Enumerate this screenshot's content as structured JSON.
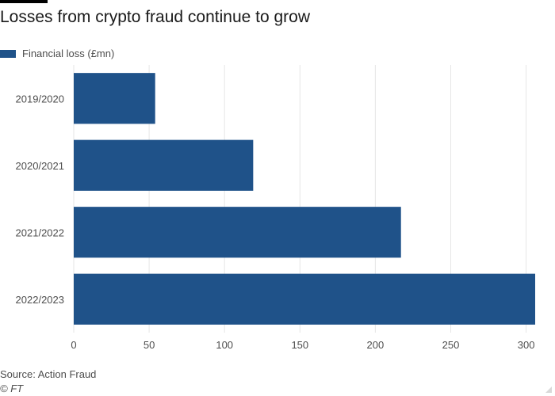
{
  "header": {
    "title": "Losses from crypto fraud continue to grow"
  },
  "legend": {
    "label": "Financial loss (£mn)"
  },
  "footer": {
    "source": "Source: Action Fraud",
    "copyright": "© FT"
  },
  "colors": {
    "bar": "#1f5289",
    "grid": "#e6e6e6",
    "axis_text": "#4d4d4d"
  },
  "chart_data": {
    "type": "bar",
    "orientation": "horizontal",
    "title": "Losses from crypto fraud continue to grow",
    "categories": [
      "2019/2020",
      "2020/2021",
      "2021/2022",
      "2022/2023"
    ],
    "series": [
      {
        "name": "Financial loss (£mn)",
        "values": [
          54,
          119,
          217,
          306
        ]
      }
    ],
    "xlim": [
      0,
      306
    ],
    "xticks": [
      0,
      50,
      100,
      150,
      200,
      250,
      300
    ],
    "xlabel": "",
    "ylabel": "",
    "grid": true,
    "legend_position": "top-left"
  }
}
